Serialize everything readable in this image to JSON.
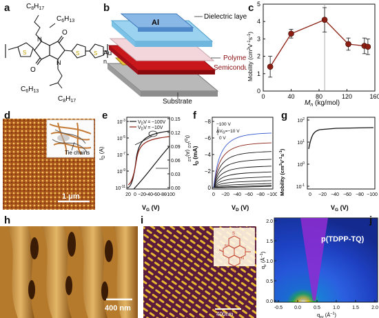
{
  "labels": {
    "a": "a",
    "b": "b",
    "c": "c",
    "d": "d",
    "e": "e",
    "f": "f",
    "g": "g",
    "h": "h",
    "i": "i",
    "j": "j"
  },
  "panel_a": {
    "sub_c8h17_top": "C",
    "sub_c8h17_top_n1": "8",
    "sub_c8h17_top_h": "H",
    "sub_c8h17_top_n2": "17",
    "sub_c6h13_top": "C",
    "sub_c6h13_top_n1": "6",
    "sub_c6h13_top_h": "H",
    "sub_c6h13_top_n2": "13",
    "o_top": "O",
    "o_bot": "O",
    "n_top": "N",
    "n_bot": "N",
    "s1": "S",
    "s2": "S",
    "s3": "S",
    "repeat_n": "n",
    "bottom_c6": "C",
    "bottom_c6_n1": "6",
    "bottom_c6_h": "H",
    "bottom_c6_n2": "13",
    "bottom_c8": "C",
    "bottom_c8_n1": "8",
    "bottom_c8_h": "H",
    "bottom_c8_n2": "17"
  },
  "panel_b": {
    "al": "Al",
    "au": "Au",
    "dielectric": "Dielectric layer",
    "polymer": "Polymer",
    "semiconductor": "Semiconductor",
    "substrate": "Substrate"
  },
  "panel_d": {
    "scale": "1 μm",
    "tie": "Tie chains"
  },
  "panel_e": {
    "legend": [
      "V = −100V",
      "V = −10V"
    ],
    "legend_sub": "D",
    "ylabel_left": "I",
    "ylabel_left_sub": "D",
    "ylabel_left_unit": " (A)",
    "ylabel_right": "(I",
    "ylabel_right_sub": "D",
    "ylabel_right_unit": ")",
    "ylabel_right_sup": "1/2",
    "ylabel_right_a": " (A)",
    "ylabel_right_a_sup": "1/2",
    "xlabel": "V",
    "xlabel_sub": "G",
    "xlabel_unit": " (V)",
    "left_ticks": [
      "10",
      "10",
      "10",
      "10",
      "10"
    ],
    "left_ticks_sup": [
      "-3",
      "-5",
      "-7",
      "-9",
      "-11"
    ],
    "right_ticks": [
      "0.15",
      "0.12",
      "0.09",
      "0.06",
      "0.03",
      "0.00"
    ],
    "x_ticks": [
      "20",
      "0",
      "−20",
      "−40",
      "−60",
      "−80",
      "−100"
    ]
  },
  "panel_f": {
    "ylabel": "I",
    "ylabel_sub": "D",
    "ylabel_unit": " (mA)",
    "xlabel": "V",
    "xlabel_sub": "D",
    "xlabel_unit": " (V)",
    "y_ticks": [
      "0",
      "−2",
      "−4",
      "−6",
      "−8"
    ],
    "x_ticks": [
      "0",
      "−20",
      "−40",
      "−60",
      "−80",
      "−100"
    ],
    "ann_top": "−100 V",
    "ann_mid": "ΔV",
    "ann_mid_sub": "G",
    "ann_mid_val": "=−10 V",
    "ann_bot": "0 V"
  },
  "panel_g": {
    "ylabel": "Mobility (cm",
    "ylabel_sup": "2",
    "ylabel_rest": "V",
    "ylabel_sup2": "-1",
    "ylabel_s": "s",
    "ylabel_sup3": "-1",
    "ylabel_end": ")",
    "xlabel": "V",
    "xlabel_sub": "G",
    "xlabel_unit": " (V)",
    "y_ticks": [
      "10",
      "10",
      "10",
      "10"
    ],
    "y_ticks_sup": [
      "2",
      "1",
      "0",
      "-1"
    ],
    "x_ticks": [
      "0",
      "−20",
      "−40",
      "−60",
      "−80",
      "−100"
    ]
  },
  "panel_h": {
    "scale": "400 nm"
  },
  "panel_i": {
    "scale": "400nm",
    "s_top": "S",
    "s_bot": "S",
    "n1": "N",
    "n2": "N"
  },
  "panel_j": {
    "title": "p(TDPP-TQ)",
    "ylabel": "q",
    "ylabel_sub": "z",
    "ylabel_unit": " (Å",
    "ylabel_sup": "−1",
    "ylabel_end": ")",
    "xlabel": "q",
    "xlabel_sub": "xy",
    "xlabel_unit": " (Å",
    "xlabel_sup": "−1",
    "xlabel_end": ")",
    "x_ticks": [
      "-0.5",
      "0.0",
      "0.5",
      "1.0",
      "1.5",
      "2.0"
    ],
    "y_ticks": [
      "2.0",
      "1.5",
      "1.0",
      "0.5",
      "0.0"
    ]
  },
  "chart_data": [
    {
      "panel": "c",
      "type": "line",
      "xlabel": "M",
      "xlabel_sub": "n",
      "xlabel_unit": " (kg/mol)",
      "ylabel": "Mobility (cm",
      "ylabel_sup": "2",
      "ylabel_rest": "V",
      "ylabel_sup2": "-1",
      "ylabel_s": "s",
      "ylabel_sup3": "-1",
      "ylabel_end": ")",
      "xlim": [
        0,
        160
      ],
      "ylim": [
        0,
        5
      ],
      "x_ticks": [
        "0",
        "40",
        "80",
        "120",
        "160"
      ],
      "y_ticks": [
        "0",
        "1",
        "2",
        "3",
        "4",
        "5"
      ],
      "x": [
        10,
        40,
        88,
        122,
        145,
        150
      ],
      "y": [
        1.4,
        3.3,
        4.1,
        2.7,
        2.6,
        2.55
      ],
      "err": [
        0.6,
        0.25,
        0.7,
        0.35,
        0.45,
        0.45
      ],
      "vline_x": 88,
      "color": "#8b1e12"
    }
  ]
}
